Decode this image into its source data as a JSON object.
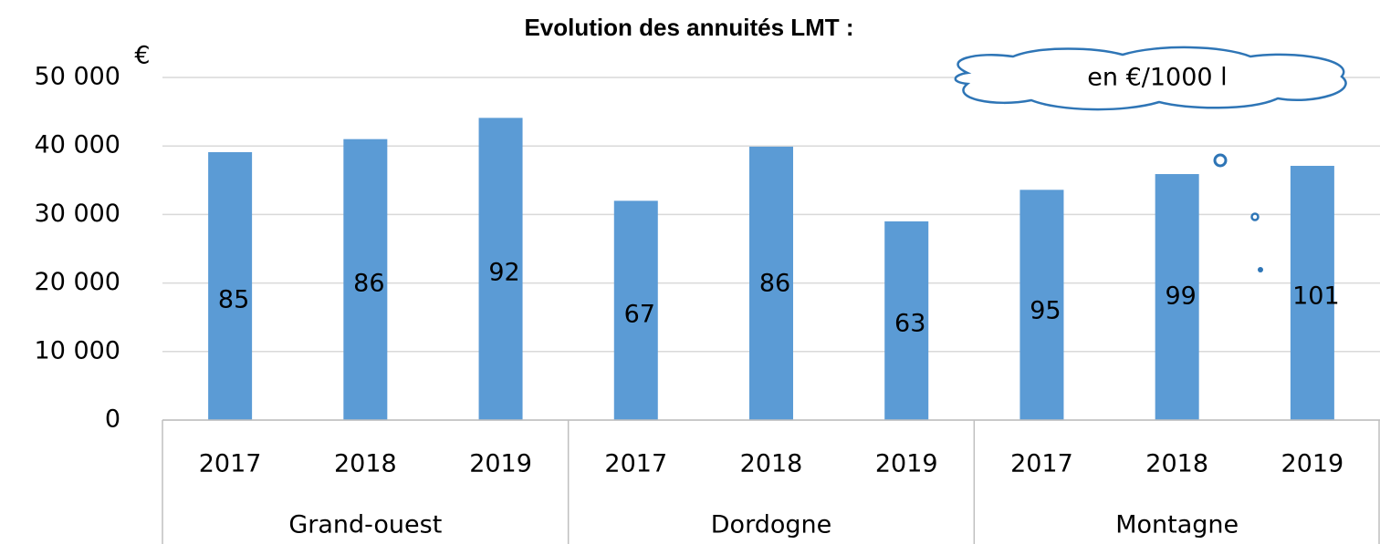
{
  "chart_data": {
    "type": "bar",
    "title": "Evolution des annuités LMT :",
    "y_label": "€",
    "annotation": "en €/1000 l",
    "categories": [
      "2017",
      "2018",
      "2019",
      "2017",
      "2018",
      "2019",
      "2017",
      "2018",
      "2019"
    ],
    "groups": [
      "Grand-ouest",
      "Dordogne",
      "Montagne"
    ],
    "values": [
      39100,
      41000,
      44100,
      32000,
      39900,
      29000,
      33600,
      35900,
      37100
    ],
    "per_1000l": [
      85,
      86,
      92,
      67,
      86,
      63,
      95,
      99,
      101
    ],
    "color": "#5b9bd5",
    "ylim": [
      0,
      50000
    ],
    "yticks": [
      0,
      {
        "value": 10000,
        "label": "10 000"
      },
      {
        "value": 20000,
        "label": "20 000"
      },
      {
        "value": 30000,
        "label": "30 000"
      },
      {
        "value": 40000,
        "label": "40 000"
      },
      {
        "value": 50000,
        "label": "50 000"
      }
    ],
    "grid": true
  }
}
